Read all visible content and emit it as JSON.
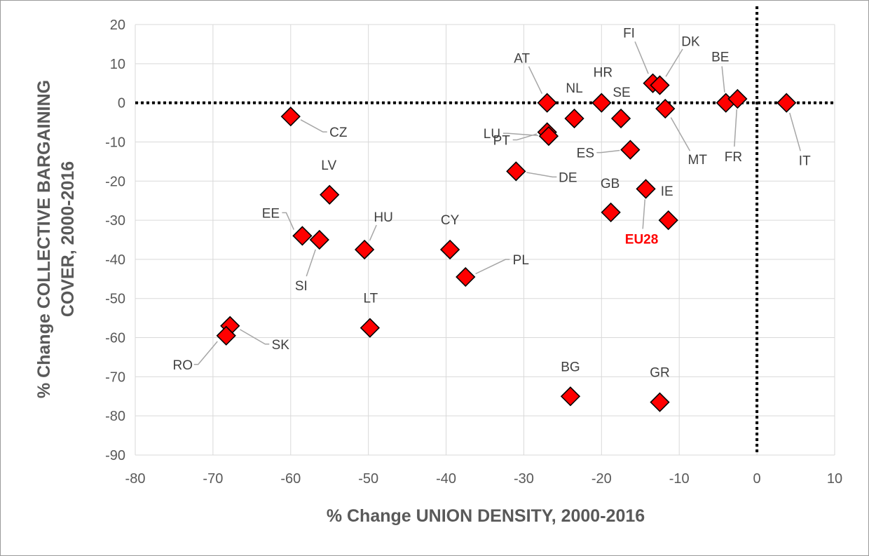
{
  "chart_data": {
    "type": "scatter",
    "xlabel": "% Change UNION DENSITY, 2000-2016",
    "ylabel": "% Change COLLECTIVE BARGAINING COVER, 2000-2016",
    "xlim": [
      -80,
      10
    ],
    "ylim": [
      -90,
      20
    ],
    "xticks": [
      -80,
      -70,
      -60,
      -50,
      -40,
      -30,
      -20,
      -10,
      0,
      10
    ],
    "yticks": [
      20,
      10,
      0,
      -10,
      -20,
      -30,
      -40,
      -50,
      -60,
      -70,
      -80,
      -90
    ],
    "grid": true,
    "reference_lines": [
      {
        "axis": "x",
        "value": 0,
        "style": "dotted"
      },
      {
        "axis": "y",
        "value": 0,
        "style": "dotted"
      }
    ],
    "marker": {
      "shape": "diamond",
      "fill": "#ff0000",
      "stroke": "#000000"
    },
    "highlight_color": "#ff0000",
    "points": [
      {
        "label": "AT",
        "x": -27,
        "y": 0
      },
      {
        "label": "NL",
        "x": -23.5,
        "y": -4
      },
      {
        "label": "HR",
        "x": -20,
        "y": 0
      },
      {
        "label": "SE",
        "x": -17.5,
        "y": -4
      },
      {
        "label": "FI",
        "x": -13.4,
        "y": 5
      },
      {
        "label": "DK",
        "x": -12.5,
        "y": 4.5
      },
      {
        "label": "MT",
        "x": -11.8,
        "y": -1.5
      },
      {
        "label": "BE",
        "x": -4,
        "y": 0
      },
      {
        "label": "FR",
        "x": -2.5,
        "y": 1
      },
      {
        "label": "IT",
        "x": 3.8,
        "y": 0
      },
      {
        "label": "PT",
        "x": -27,
        "y": -7.5
      },
      {
        "label": "LU",
        "x": -26.8,
        "y": -8.5
      },
      {
        "label": "ES",
        "x": -16.3,
        "y": -12
      },
      {
        "label": "CZ",
        "x": -60,
        "y": -3.5
      },
      {
        "label": "DE",
        "x": -31,
        "y": -17.5
      },
      {
        "label": "GB",
        "x": -18.8,
        "y": -28
      },
      {
        "label": "IE",
        "x": -11.4,
        "y": -30
      },
      {
        "label": "EU28",
        "x": -14.3,
        "y": -22,
        "highlight": true
      },
      {
        "label": "LV",
        "x": -55,
        "y": -23.5
      },
      {
        "label": "EE",
        "x": -58.5,
        "y": -34
      },
      {
        "label": "SI",
        "x": -56.3,
        "y": -35
      },
      {
        "label": "HU",
        "x": -50.5,
        "y": -37.5
      },
      {
        "label": "CY",
        "x": -39.5,
        "y": -37.5
      },
      {
        "label": "PL",
        "x": -37.5,
        "y": -44.5
      },
      {
        "label": "LT",
        "x": -49.8,
        "y": -57.5
      },
      {
        "label": "SK",
        "x": -67.8,
        "y": -57
      },
      {
        "label": "RO",
        "x": -68.3,
        "y": -59.5
      },
      {
        "label": "BG",
        "x": -24,
        "y": -75
      },
      {
        "label": "GR",
        "x": -12.5,
        "y": -76.5
      }
    ]
  }
}
